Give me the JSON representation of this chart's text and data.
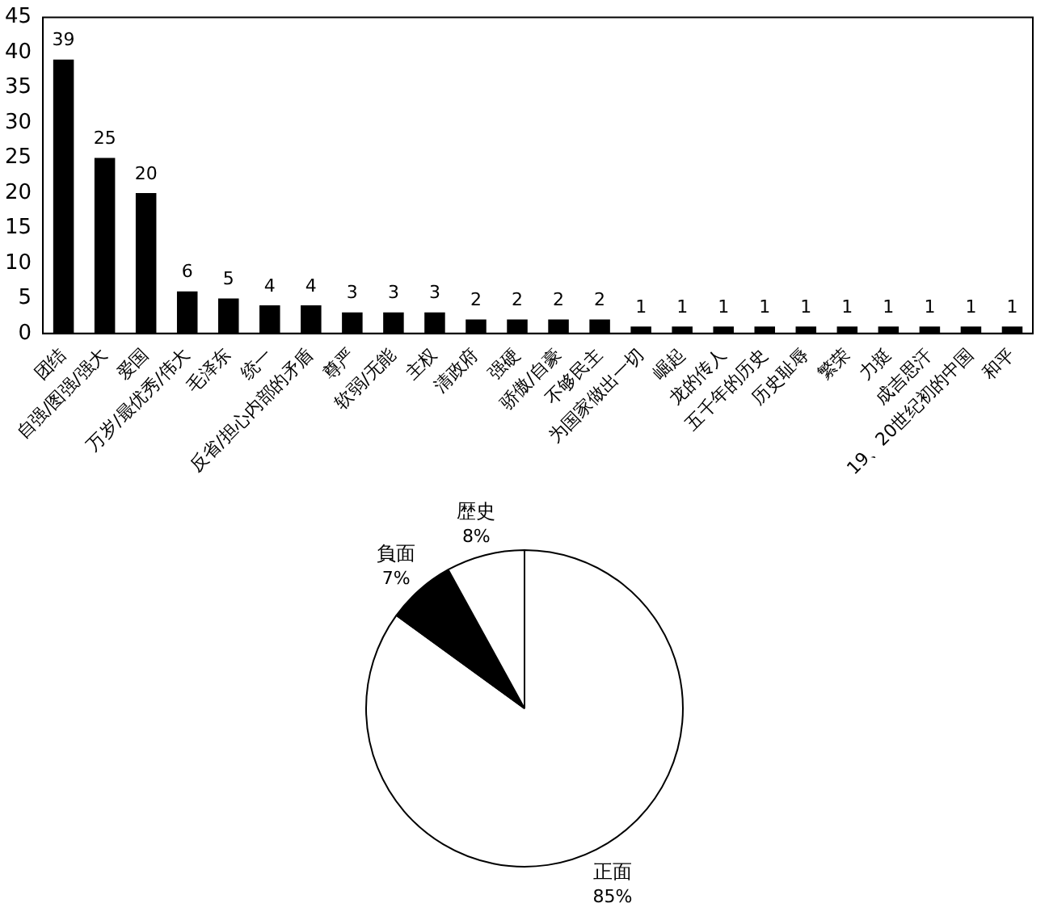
{
  "chart_data": [
    {
      "type": "bar",
      "categories": [
        "团结",
        "自强/图强/强大",
        "爱国",
        "万岁/最优秀/伟大",
        "毛泽东",
        "统一",
        "反省/担心内部的矛盾",
        "尊严",
        "软弱/无能",
        "主权",
        "清政府",
        "强硬",
        "骄傲/自豪",
        "不够民主",
        "为国家做出一切",
        "崛起",
        "龙的传人",
        "五千年的历史",
        "历史耻辱",
        "繁荣",
        "力挺",
        "成吉思汗",
        "19、20世纪初的中国",
        "和平"
      ],
      "values": [
        39,
        25,
        20,
        6,
        5,
        4,
        4,
        3,
        3,
        3,
        2,
        2,
        2,
        2,
        1,
        1,
        1,
        1,
        1,
        1,
        1,
        1,
        1,
        1
      ],
      "color": "#000000",
      "ylim": [
        0,
        45
      ],
      "yticks": [
        0,
        5,
        10,
        15,
        20,
        25,
        30,
        35,
        40,
        45
      ],
      "grid": false,
      "legend": false,
      "data_labels": true
    },
    {
      "type": "pie",
      "categories": [
        "正面",
        "負面",
        "歴史"
      ],
      "values": [
        85,
        7,
        8
      ],
      "colors": [
        "#ffffff",
        "#000000",
        "#ffffff"
      ],
      "value_labels": [
        "85%",
        "7%",
        "8%"
      ],
      "legend": false
    }
  ]
}
